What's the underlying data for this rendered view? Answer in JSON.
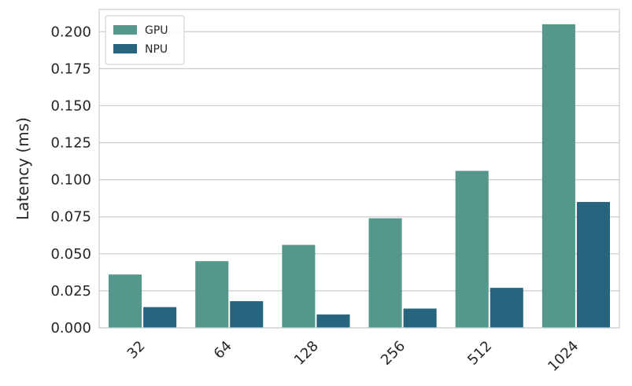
{
  "chart_data": {
    "type": "bar",
    "title": "",
    "xlabel": "",
    "ylabel": "Latency (ms)",
    "categories": [
      "32",
      "64",
      "128",
      "256",
      "512",
      "1024"
    ],
    "series": [
      {
        "name": "GPU",
        "color": "#55978b",
        "values": [
          0.036,
          0.045,
          0.056,
          0.074,
          0.106,
          0.205
        ]
      },
      {
        "name": "NPU",
        "color": "#27657f",
        "values": [
          0.014,
          0.018,
          0.009,
          0.013,
          0.027,
          0.085
        ]
      }
    ],
    "ylim": [
      0,
      0.215
    ],
    "yticks": [
      "0.000",
      "0.025",
      "0.050",
      "0.075",
      "0.100",
      "0.125",
      "0.150",
      "0.175",
      "0.200"
    ],
    "xtick_rotation": 45,
    "grid": true,
    "legend": "top-left"
  }
}
